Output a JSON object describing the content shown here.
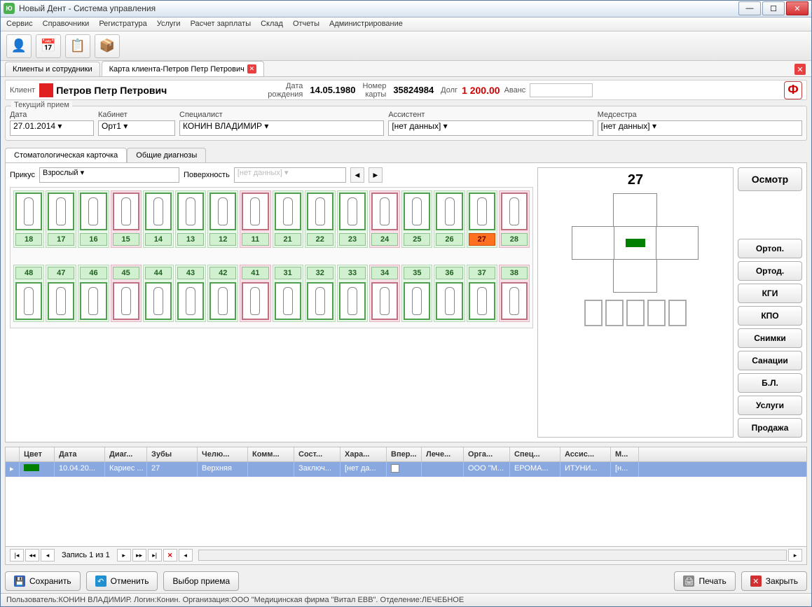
{
  "window": {
    "title": "Новый Дент - Система управления"
  },
  "menu": {
    "items": [
      "Сервис",
      "Справочники",
      "Регистратура",
      "Услуги",
      "Расчет зарплаты",
      "Склад",
      "Отчеты",
      "Администрирование"
    ]
  },
  "tabs": {
    "t1": "Клиенты и сотрудники",
    "t2": "Карта клиента-Петров Петр Петрович"
  },
  "client": {
    "label": "Клиент",
    "name": "Петров Петр Петрович",
    "dob_label": "Дата\nрождения",
    "dob": "14.05.1980",
    "card_label": "Номер\nкарты",
    "card": "35824984",
    "debt_label": "Долг",
    "debt": "1 200.00",
    "avans_label": "Аванс",
    "color": "#e02020"
  },
  "appointment": {
    "group_title": "Текущий прием",
    "date_label": "Дата",
    "date": "27.01.2014",
    "cab_label": "Кабинет",
    "cab": "Орт1",
    "spec_label": "Специалист",
    "spec": "КОНИН ВЛАДИМИР",
    "ass_label": "Ассистент",
    "ass": "[нет данных]",
    "nurse_label": "Медсестра",
    "nurse": "[нет данных]"
  },
  "subtabs": {
    "a": "Стоматологическая карточка",
    "b": "Общие диагнозы"
  },
  "bite": {
    "label": "Прикус",
    "value": "Взрослый",
    "surf_label": "Поверхность",
    "surf_value": "[нет данных]"
  },
  "teeth": {
    "upper": [
      {
        "n": "18",
        "c": "g"
      },
      {
        "n": "17",
        "c": "g"
      },
      {
        "n": "16",
        "c": "g"
      },
      {
        "n": "15",
        "c": "p"
      },
      {
        "n": "14",
        "c": "g"
      },
      {
        "n": "13",
        "c": "g"
      },
      {
        "n": "12",
        "c": "g"
      },
      {
        "n": "11",
        "c": "p"
      },
      {
        "n": "21",
        "c": "g"
      },
      {
        "n": "22",
        "c": "g"
      },
      {
        "n": "23",
        "c": "g"
      },
      {
        "n": "24",
        "c": "p"
      },
      {
        "n": "25",
        "c": "g"
      },
      {
        "n": "26",
        "c": "g"
      },
      {
        "n": "27",
        "c": "g",
        "sel": true
      },
      {
        "n": "28",
        "c": "p"
      }
    ],
    "lower": [
      {
        "n": "48",
        "c": "g"
      },
      {
        "n": "47",
        "c": "g"
      },
      {
        "n": "46",
        "c": "g"
      },
      {
        "n": "45",
        "c": "p"
      },
      {
        "n": "44",
        "c": "g"
      },
      {
        "n": "43",
        "c": "g"
      },
      {
        "n": "42",
        "c": "g"
      },
      {
        "n": "41",
        "c": "p"
      },
      {
        "n": "31",
        "c": "g"
      },
      {
        "n": "32",
        "c": "g"
      },
      {
        "n": "33",
        "c": "g"
      },
      {
        "n": "34",
        "c": "p"
      },
      {
        "n": "35",
        "c": "g"
      },
      {
        "n": "36",
        "c": "g"
      },
      {
        "n": "37",
        "c": "g"
      },
      {
        "n": "38",
        "c": "p"
      }
    ]
  },
  "detail": {
    "tooth": "27"
  },
  "side_buttons": [
    "Осмотр",
    "Ортоп.",
    "Ортод.",
    "КГИ",
    "КПО",
    "Снимки",
    "Санации",
    "Б.Л.",
    "Услуги",
    "Продажа"
  ],
  "grid": {
    "cols": [
      "Цвет",
      "Дата",
      "Диаг...",
      "Зубы",
      "Челю...",
      "Комм...",
      "Сост...",
      "Хара...",
      "Впер...",
      "Лече...",
      "Орга...",
      "Спец...",
      "Ассис...",
      "М..."
    ],
    "widths": [
      50,
      72,
      60,
      72,
      72,
      66,
      66,
      66,
      50,
      60,
      66,
      72,
      72,
      40
    ],
    "row": {
      "color": "#008000",
      "date": "10.04.20...",
      "diag": "Кариес ...",
      "teeth": "27",
      "jaw": "Верхняя",
      "comm": "",
      "state": "Заключ...",
      "char": "[нет да...",
      "first": "",
      "treat": "",
      "org": "ООО \"М...",
      "spec": "ЕРОМА...",
      "ass": "ИТУНИ...",
      "m": "[н..."
    }
  },
  "pager": {
    "text": "Запись 1 из 1"
  },
  "actions": {
    "save": "Сохранить",
    "cancel": "Отменить",
    "select": "Выбор приема",
    "print": "Печать",
    "close": "Закрыть"
  },
  "status": "Пользователь:КОНИН ВЛАДИМИР. Логин:Конин. Организация:ООО \"Медицинская фирма \"Витал ЕВВ\". Отделение:ЛЕЧЕБНОЕ",
  "colors": {
    "green_bg": "#e8f8e8",
    "green_border": "#50a050",
    "pink_bg": "#f8e0e8",
    "pink_border": "#c07080",
    "selected": "#ff7020",
    "row_sel": "#8aa8e0",
    "debt": "#d00000"
  }
}
